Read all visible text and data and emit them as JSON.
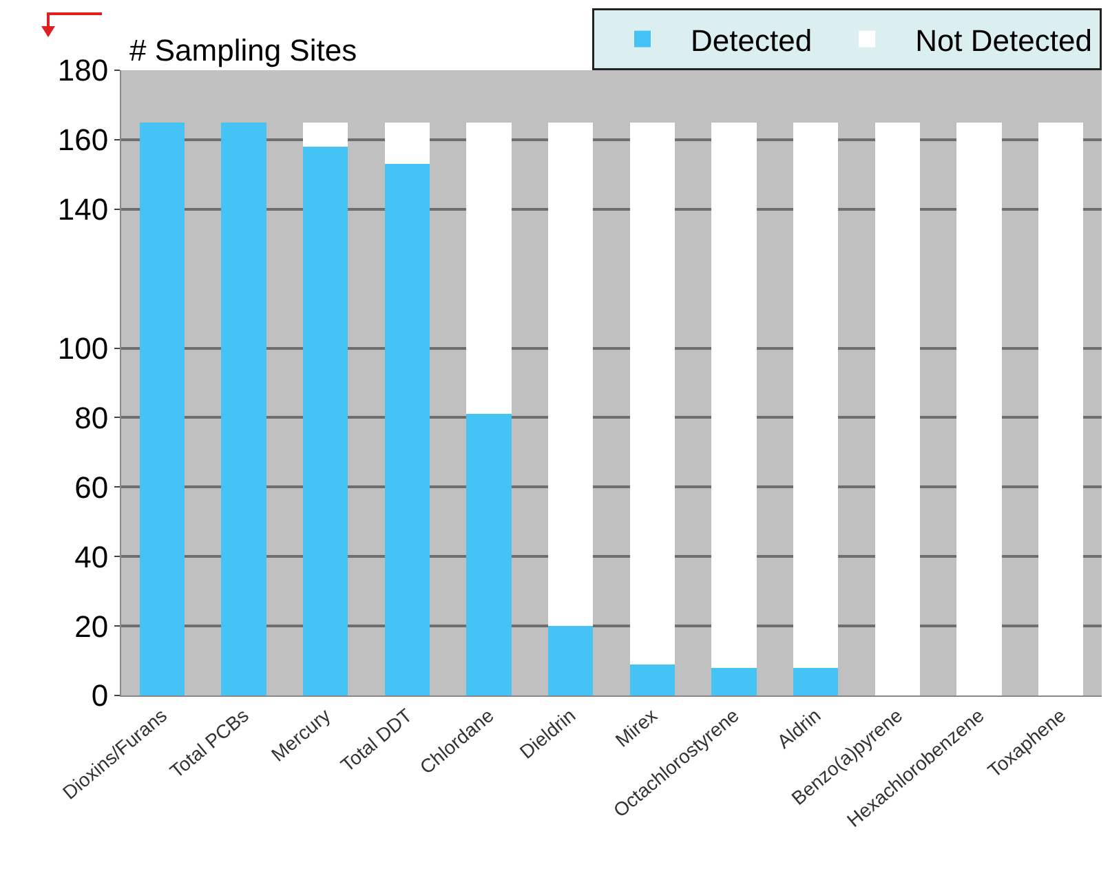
{
  "chart_data": {
    "type": "bar",
    "stacked": true,
    "ylabel": "# Sampling Sites",
    "categories": [
      "Dioxins/Furans",
      "Total PCBs",
      "Mercury",
      "Total DDT",
      "Chlordane",
      "Dieldrin",
      "Mirex",
      "Octachlorostyrene",
      "Aldrin",
      "Benzo(a)pyrene",
      "Hexachlorobenzene",
      "Toxaphene"
    ],
    "series": [
      {
        "name": "Detected",
        "color": "#45c3f5",
        "values": [
          165,
          165,
          158,
          153,
          81,
          20,
          9,
          8,
          8,
          0,
          0,
          0
        ]
      },
      {
        "name": "Not Detected",
        "color": "#ffffff",
        "values": [
          0,
          0,
          7,
          12,
          84,
          145,
          156,
          157,
          157,
          165,
          165,
          165
        ]
      }
    ],
    "ylim": [
      0,
      180
    ],
    "yticks": [
      0,
      20,
      40,
      60,
      80,
      100,
      140,
      160,
      180
    ],
    "grid": "y",
    "legend": "top right"
  }
}
